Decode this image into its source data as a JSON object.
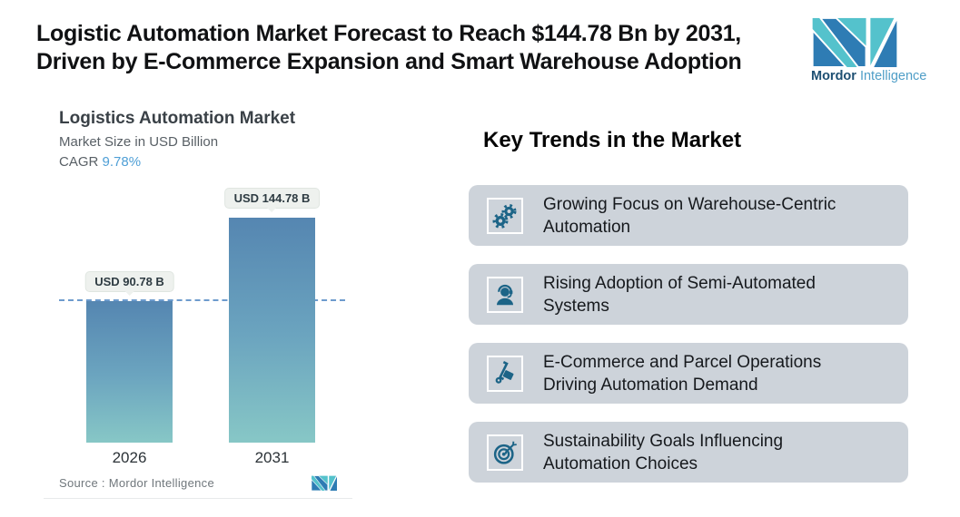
{
  "header": {
    "title_lines": [
      "Logistic Automation Market Forecast to Reach $144.78 Bn by 2031,",
      "Driven by E-Commerce Expansion and Smart Warehouse Adoption"
    ],
    "brand": {
      "name_bold": "Mordor",
      "name_light": "Intelligence",
      "logo_icon": "mordor-intelligence-mark-icon"
    }
  },
  "chart": {
    "title": "Logistics Automation Market",
    "subtitle": "Market Size in USD Billion",
    "cagr_label": "CAGR",
    "cagr_value": "9.78%",
    "source_text": "Source :  Mordor Intelligence",
    "bars": [
      {
        "year": "2026",
        "label": "USD 90.78 B"
      },
      {
        "year": "2031",
        "label": "USD 144.78 B"
      }
    ]
  },
  "chart_data": {
    "type": "bar",
    "title": "Logistics Automation Market",
    "subtitle": "Market Size in USD Billion",
    "cagr": "9.78%",
    "unit": "USD Billion",
    "categories": [
      "2026",
      "2031"
    ],
    "values": [
      90.78,
      144.78
    ],
    "data_labels": [
      "USD 90.78 B",
      "USD 144.78 B"
    ],
    "reference_line": 90.78,
    "reference_line_style": "dashed",
    "legend": "none",
    "grid": "off",
    "source": "Source :  Mordor Intelligence"
  },
  "trends": {
    "heading": "Key Trends in the Market",
    "items": [
      {
        "icon": "gears-icon",
        "text": "Growing Focus on Warehouse-Centric Automation"
      },
      {
        "icon": "support-agent-icon",
        "text": "Rising Adoption of Semi-Automated Systems"
      },
      {
        "icon": "hand-truck-icon",
        "text": "E-Commerce and Parcel Operations Driving Automation Demand"
      },
      {
        "icon": "target-arrow-icon",
        "text": "Sustainability Goals Influencing Automation Choices"
      }
    ]
  },
  "colors": {
    "bar_gradient_top": "#5586b1",
    "bar_gradient_bottom": "#87c7c6",
    "dashed_line": "#6d9bcd",
    "cagr_accent": "#4f9fd6",
    "card_background": "#cdd3da",
    "trend_icon": "#1c6487",
    "logo_teal": "#54c2cc",
    "logo_blue": "#2e7cb4",
    "callout_background": "#eef1ee"
  }
}
